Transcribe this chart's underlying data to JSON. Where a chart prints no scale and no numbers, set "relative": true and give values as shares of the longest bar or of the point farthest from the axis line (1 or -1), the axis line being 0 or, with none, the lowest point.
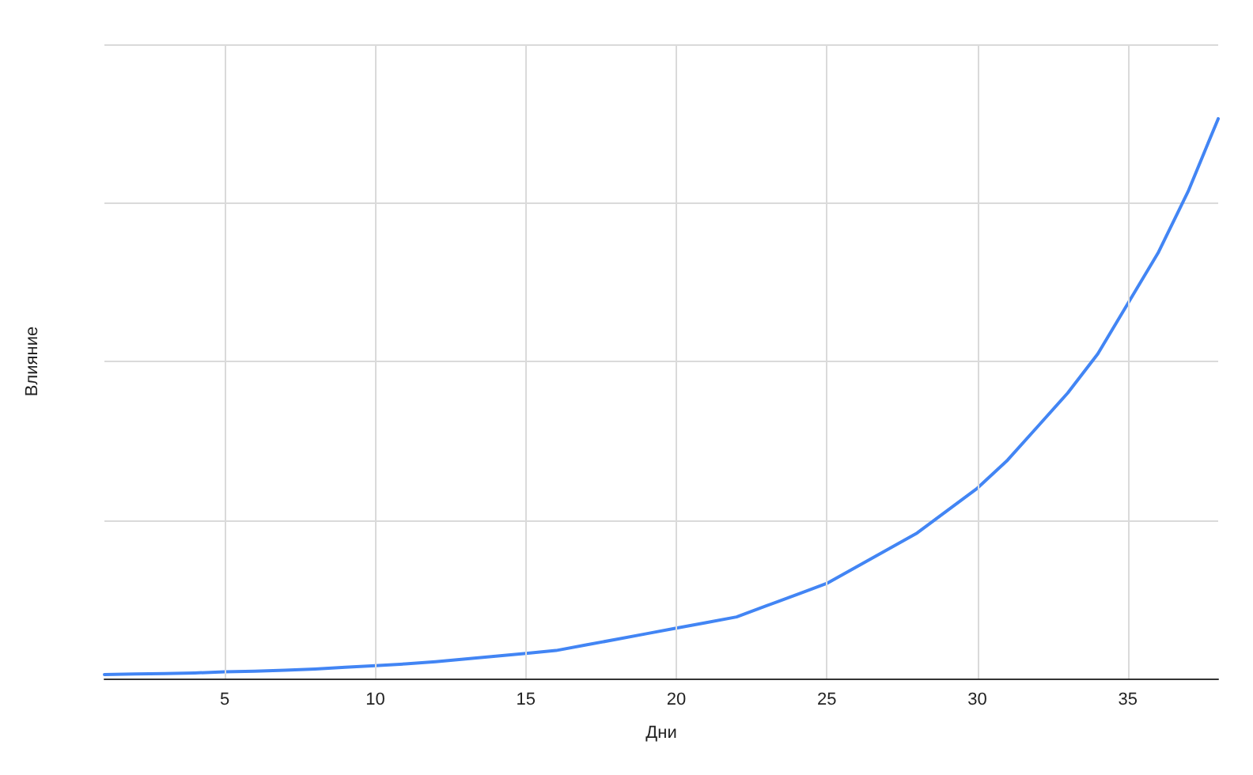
{
  "chart_data": {
    "type": "line",
    "xlabel": "Дни",
    "ylabel": "Влияние",
    "relative": true,
    "grid": true,
    "marker": "none",
    "line_style": "solid",
    "x": [
      1,
      2,
      3,
      4,
      5,
      6,
      7,
      8,
      9,
      10,
      11,
      12,
      13,
      14,
      15,
      16,
      17,
      18,
      19,
      20,
      21,
      22,
      23,
      24,
      25,
      26,
      27,
      28,
      29,
      30,
      31,
      32,
      33,
      34,
      35,
      36,
      37,
      38
    ],
    "xlim": [
      1,
      38
    ],
    "xticks": [
      5,
      10,
      15,
      20,
      25,
      30,
      35
    ],
    "series": [
      {
        "color": "#4285f4",
        "values": [
          0.007,
          0.008,
          0.009,
          0.01,
          0.012,
          0.013,
          0.015,
          0.017,
          0.02,
          0.023,
          0.026,
          0.03,
          0.035,
          0.04,
          0.045,
          0.05,
          0.06,
          0.07,
          0.08,
          0.09,
          0.1,
          0.11,
          0.13,
          0.15,
          0.17,
          0.2,
          0.23,
          0.26,
          0.3,
          0.34,
          0.39,
          0.45,
          0.51,
          0.58,
          0.67,
          0.76,
          0.87,
          1
        ]
      }
    ]
  }
}
